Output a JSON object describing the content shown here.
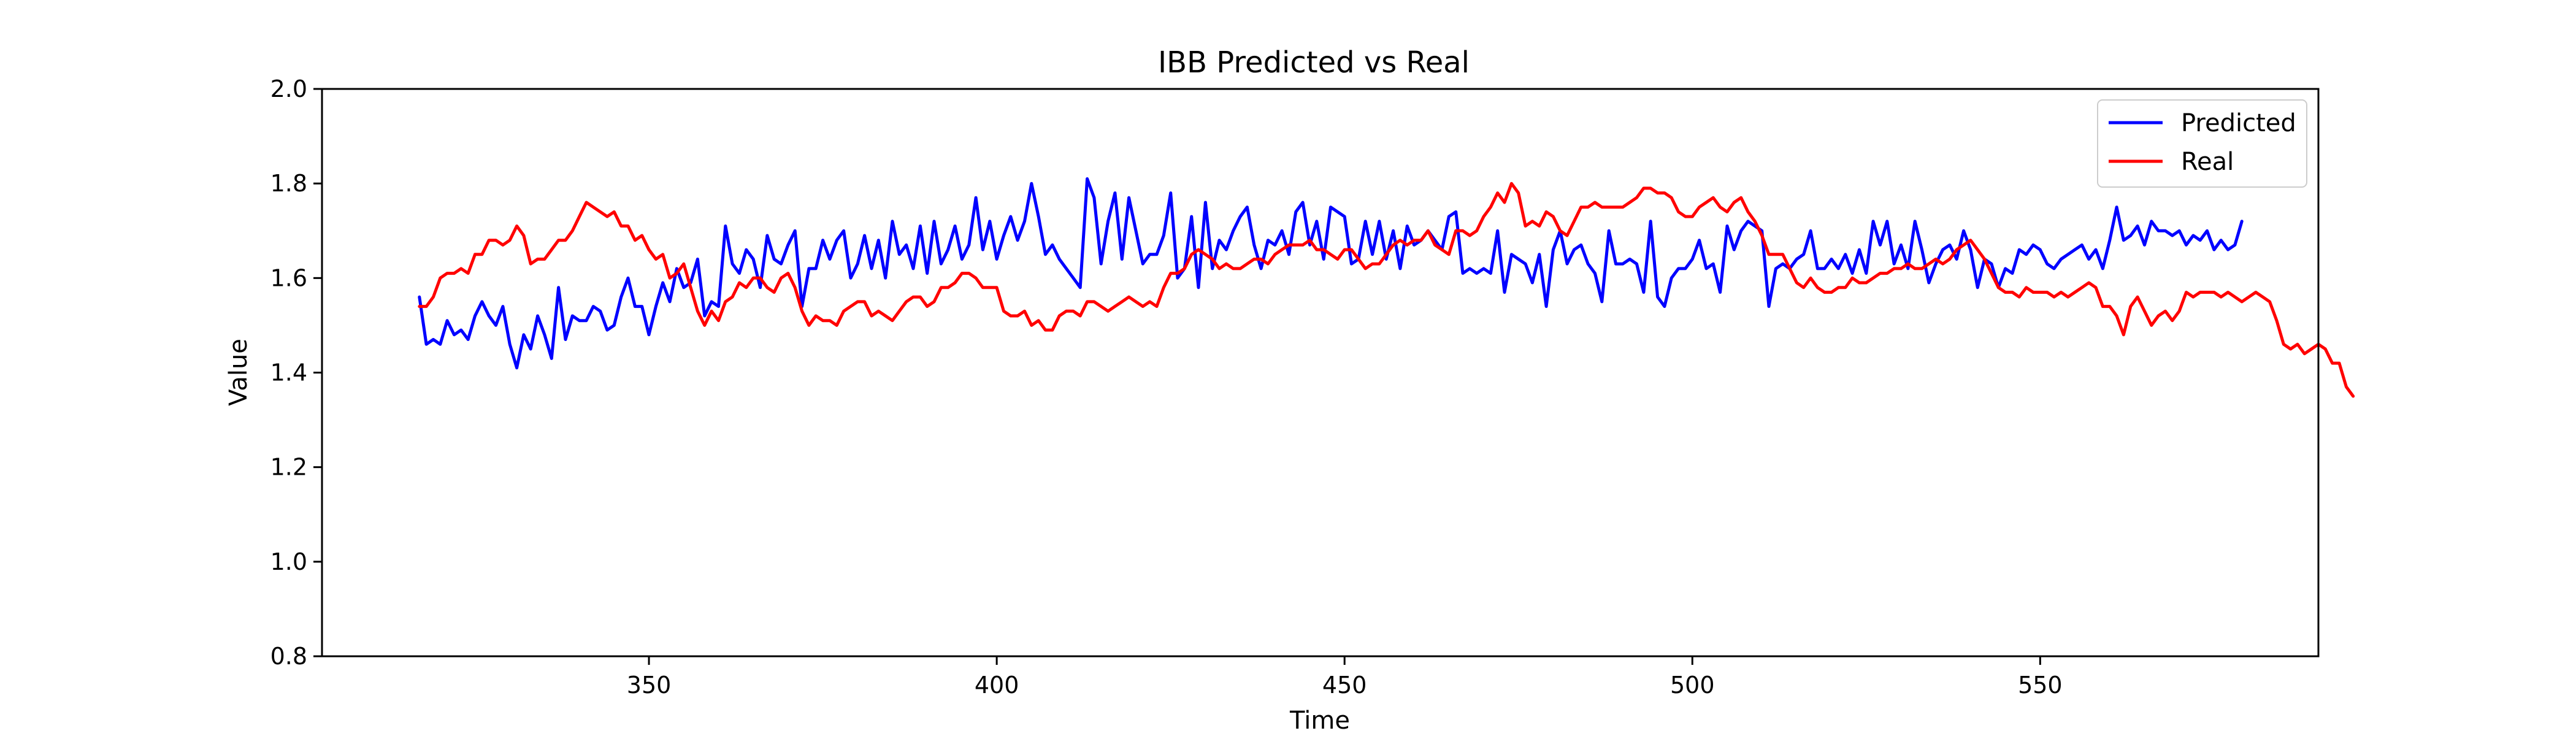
{
  "chart_data": {
    "type": "line",
    "title": "IBB Predicted vs Real",
    "xlabel": "Time",
    "ylabel": "Value",
    "xlim": [
      303,
      590
    ],
    "ylim": [
      0.8,
      2.0
    ],
    "xticks": [
      "350",
      "400",
      "450",
      "500",
      "550"
    ],
    "yticks": [
      "0.8",
      "1.0",
      "1.2",
      "1.4",
      "1.6",
      "1.8",
      "2.0"
    ],
    "grid": false,
    "legend_position": "top-right",
    "x_start": 317,
    "series": [
      {
        "name": "Predicted",
        "color": "#0000ff",
        "values": [
          1.56,
          1.46,
          1.47,
          1.46,
          1.51,
          1.48,
          1.49,
          1.47,
          1.52,
          1.55,
          1.52,
          1.5,
          1.54,
          1.46,
          1.41,
          1.48,
          1.45,
          1.52,
          1.48,
          1.43,
          1.58,
          1.47,
          1.52,
          1.51,
          1.51,
          1.54,
          1.53,
          1.49,
          1.5,
          1.56,
          1.6,
          1.54,
          1.54,
          1.48,
          1.54,
          1.59,
          1.55,
          1.62,
          1.58,
          1.59,
          1.64,
          1.52,
          1.55,
          1.54,
          1.71,
          1.63,
          1.61,
          1.66,
          1.64,
          1.58,
          1.69,
          1.64,
          1.63,
          1.67,
          1.7,
          1.54,
          1.62,
          1.62,
          1.68,
          1.64,
          1.68,
          1.7,
          1.6,
          1.63,
          1.69,
          1.62,
          1.68,
          1.6,
          1.72,
          1.65,
          1.67,
          1.62,
          1.71,
          1.61,
          1.72,
          1.63,
          1.66,
          1.71,
          1.64,
          1.67,
          1.77,
          1.66,
          1.72,
          1.64,
          1.69,
          1.73,
          1.68,
          1.72,
          1.8,
          1.73,
          1.65,
          1.67,
          1.64,
          1.62,
          1.6,
          1.58,
          1.81,
          1.77,
          1.63,
          1.72,
          1.78,
          1.64,
          1.77,
          1.7,
          1.63,
          1.65,
          1.65,
          1.69,
          1.78,
          1.6,
          1.62,
          1.73,
          1.58,
          1.76,
          1.62,
          1.68,
          1.66,
          1.7,
          1.73,
          1.75,
          1.67,
          1.62,
          1.68,
          1.67,
          1.7,
          1.65,
          1.74,
          1.76,
          1.67,
          1.72,
          1.64,
          1.75,
          1.74,
          1.73,
          1.63,
          1.64,
          1.72,
          1.65,
          1.72,
          1.64,
          1.7,
          1.62,
          1.71,
          1.67,
          1.68,
          1.7,
          1.68,
          1.66,
          1.73,
          1.74,
          1.61,
          1.62,
          1.61,
          1.62,
          1.61,
          1.7,
          1.57,
          1.65,
          1.64,
          1.63,
          1.59,
          1.65,
          1.54,
          1.66,
          1.7,
          1.63,
          1.66,
          1.67,
          1.63,
          1.61,
          1.55,
          1.7,
          1.63,
          1.63,
          1.64,
          1.63,
          1.57,
          1.72,
          1.56,
          1.54,
          1.6,
          1.62,
          1.62,
          1.64,
          1.68,
          1.62,
          1.63,
          1.57,
          1.71,
          1.66,
          1.7,
          1.72,
          1.71,
          1.7,
          1.54,
          1.62,
          1.63,
          1.62,
          1.64,
          1.65,
          1.7,
          1.62,
          1.62,
          1.64,
          1.62,
          1.65,
          1.61,
          1.66,
          1.61,
          1.72,
          1.67,
          1.72,
          1.63,
          1.67,
          1.62,
          1.72,
          1.66,
          1.59,
          1.63,
          1.66,
          1.67,
          1.64,
          1.7,
          1.66,
          1.58,
          1.64,
          1.63,
          1.58,
          1.62,
          1.61,
          1.66,
          1.65,
          1.67,
          1.66,
          1.63,
          1.62,
          1.64,
          1.65,
          1.66,
          1.67,
          1.64,
          1.66,
          1.62,
          1.68,
          1.75,
          1.68,
          1.69,
          1.71,
          1.67,
          1.72,
          1.7,
          1.7,
          1.69,
          1.7,
          1.67,
          1.69,
          1.68,
          1.7,
          1.66,
          1.68,
          1.66,
          1.67,
          1.72
        ]
      },
      {
        "name": "Real",
        "color": "#ff0000",
        "values": [
          1.54,
          1.54,
          1.56,
          1.6,
          1.61,
          1.61,
          1.62,
          1.61,
          1.65,
          1.65,
          1.68,
          1.68,
          1.67,
          1.68,
          1.71,
          1.69,
          1.63,
          1.64,
          1.64,
          1.66,
          1.68,
          1.68,
          1.7,
          1.73,
          1.76,
          1.75,
          1.74,
          1.73,
          1.74,
          1.71,
          1.71,
          1.68,
          1.69,
          1.66,
          1.64,
          1.65,
          1.6,
          1.61,
          1.63,
          1.58,
          1.53,
          1.5,
          1.53,
          1.51,
          1.55,
          1.56,
          1.59,
          1.58,
          1.6,
          1.6,
          1.58,
          1.57,
          1.6,
          1.61,
          1.58,
          1.53,
          1.5,
          1.52,
          1.51,
          1.51,
          1.5,
          1.53,
          1.54,
          1.55,
          1.55,
          1.52,
          1.53,
          1.52,
          1.51,
          1.53,
          1.55,
          1.56,
          1.56,
          1.54,
          1.55,
          1.58,
          1.58,
          1.59,
          1.61,
          1.61,
          1.6,
          1.58,
          1.58,
          1.58,
          1.53,
          1.52,
          1.52,
          1.53,
          1.5,
          1.51,
          1.49,
          1.49,
          1.52,
          1.53,
          1.53,
          1.52,
          1.55,
          1.55,
          1.54,
          1.53,
          1.54,
          1.55,
          1.56,
          1.55,
          1.54,
          1.55,
          1.54,
          1.58,
          1.61,
          1.61,
          1.62,
          1.65,
          1.66,
          1.65,
          1.64,
          1.62,
          1.63,
          1.62,
          1.62,
          1.63,
          1.64,
          1.64,
          1.63,
          1.65,
          1.66,
          1.67,
          1.67,
          1.67,
          1.68,
          1.66,
          1.66,
          1.65,
          1.64,
          1.66,
          1.66,
          1.64,
          1.62,
          1.63,
          1.63,
          1.65,
          1.67,
          1.68,
          1.67,
          1.68,
          1.68,
          1.7,
          1.67,
          1.66,
          1.65,
          1.7,
          1.7,
          1.69,
          1.7,
          1.73,
          1.75,
          1.78,
          1.76,
          1.8,
          1.78,
          1.71,
          1.72,
          1.71,
          1.74,
          1.73,
          1.7,
          1.69,
          1.72,
          1.75,
          1.75,
          1.76,
          1.75,
          1.75,
          1.75,
          1.75,
          1.76,
          1.77,
          1.79,
          1.79,
          1.78,
          1.78,
          1.77,
          1.74,
          1.73,
          1.73,
          1.75,
          1.76,
          1.77,
          1.75,
          1.74,
          1.76,
          1.77,
          1.74,
          1.72,
          1.69,
          1.65,
          1.65,
          1.65,
          1.62,
          1.59,
          1.58,
          1.6,
          1.58,
          1.57,
          1.57,
          1.58,
          1.58,
          1.6,
          1.59,
          1.59,
          1.6,
          1.61,
          1.61,
          1.62,
          1.62,
          1.63,
          1.62,
          1.62,
          1.63,
          1.64,
          1.63,
          1.64,
          1.66,
          1.67,
          1.68,
          1.66,
          1.64,
          1.61,
          1.58,
          1.57,
          1.57,
          1.56,
          1.58,
          1.57,
          1.57,
          1.57,
          1.56,
          1.57,
          1.56,
          1.57,
          1.58,
          1.59,
          1.58,
          1.54,
          1.54,
          1.52,
          1.48,
          1.54,
          1.56,
          1.53,
          1.5,
          1.52,
          1.53,
          1.51,
          1.53,
          1.57,
          1.56,
          1.57,
          1.57,
          1.57,
          1.56,
          1.57,
          1.56,
          1.55,
          1.56,
          1.57,
          1.56,
          1.55,
          1.51,
          1.46,
          1.45,
          1.46,
          1.44,
          1.45,
          1.46,
          1.45,
          1.42,
          1.42,
          1.37,
          1.35
        ]
      }
    ]
  }
}
